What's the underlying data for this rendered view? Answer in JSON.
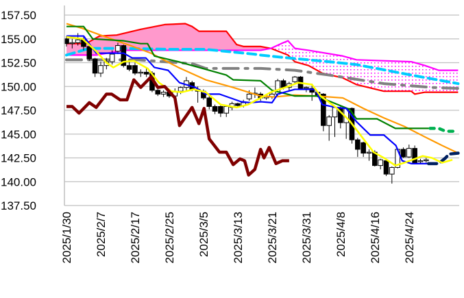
{
  "chart_data": {
    "type": "line",
    "title": "",
    "xlabel": "",
    "ylabel": "",
    "ylim": [
      137.5,
      157.5
    ],
    "xlim": [
      -0.4,
      68.8
    ],
    "grid": true,
    "y_ticks": [
      "157.50",
      "155.00",
      "152.50",
      "150.00",
      "147.50",
      "145.00",
      "142.50",
      "140.00",
      "137.50"
    ],
    "y_tick_values": [
      157.5,
      155,
      152.5,
      150,
      147.5,
      145,
      142.5,
      140,
      137.5
    ],
    "x_tick_labels": [
      "2025/1/30",
      "2025/2/7",
      "2025/2/17",
      "2025/2/25",
      "2025/3/5",
      "2025/3/13",
      "2025/3/21",
      "2025/3/31",
      "2025/4/8",
      "2025/4/16",
      "2025/4/24"
    ],
    "x_tick_index": [
      0,
      6,
      12,
      18,
      24,
      30,
      36,
      42,
      48,
      54,
      60
    ],
    "candles_ohlc": [
      [
        155.0,
        155.3,
        154.2,
        154.5
      ],
      [
        154.5,
        155.0,
        154.0,
        154.6
      ],
      [
        154.6,
        155.6,
        154.3,
        154.9
      ],
      [
        154.9,
        155.2,
        153.8,
        154.2
      ],
      [
        154.2,
        154.5,
        152.7,
        152.9
      ],
      [
        152.9,
        153.0,
        151.0,
        151.4
      ],
      [
        151.4,
        152.6,
        151.0,
        152.2
      ],
      [
        152.2,
        153.0,
        151.8,
        152.6
      ],
      [
        152.6,
        153.8,
        152.3,
        153.4
      ],
      [
        153.7,
        154.6,
        153.4,
        154.3
      ],
      [
        154.3,
        154.4,
        152.0,
        152.2
      ],
      [
        152.2,
        152.6,
        151.6,
        151.8
      ],
      [
        152.2,
        152.5,
        151.2,
        151.4
      ],
      [
        151.4,
        151.8,
        151.0,
        151.5
      ],
      [
        151.5,
        152.0,
        151.0,
        151.3
      ],
      [
        151.4,
        151.6,
        149.4,
        149.6
      ],
      [
        149.6,
        149.9,
        149.0,
        149.2
      ],
      [
        149.2,
        149.6,
        148.9,
        149.4
      ],
      [
        149.4,
        149.6,
        148.8,
        149.0
      ],
      [
        149.0,
        149.8,
        148.7,
        149.5
      ],
      [
        149.5,
        150.0,
        149.2,
        149.9
      ],
      [
        149.9,
        151.0,
        149.5,
        150.6
      ],
      [
        150.4,
        150.6,
        149.5,
        149.7
      ],
      [
        149.7,
        150.0,
        148.3,
        149.5
      ],
      [
        149.5,
        149.7,
        148.6,
        148.8
      ],
      [
        148.8,
        149.0,
        147.6,
        147.9
      ],
      [
        147.9,
        148.1,
        147.1,
        147.4
      ],
      [
        147.9,
        148.0,
        146.8,
        147.2
      ],
      [
        147.2,
        148.0,
        146.8,
        147.9
      ],
      [
        147.8,
        148.4,
        147.5,
        148.2
      ],
      [
        148.2,
        148.3,
        147.8,
        148.0
      ],
      [
        148.0,
        148.6,
        147.8,
        148.3
      ],
      [
        148.7,
        149.6,
        148.5,
        149.2
      ],
      [
        149.2,
        149.9,
        148.8,
        149.3
      ],
      [
        149.2,
        149.4,
        148.5,
        148.8
      ],
      [
        148.8,
        149.1,
        148.6,
        149.0
      ],
      [
        148.9,
        149.4,
        148.7,
        149.2
      ],
      [
        149.2,
        150.8,
        149.0,
        150.6
      ],
      [
        150.6,
        150.8,
        149.7,
        149.9
      ],
      [
        149.9,
        150.5,
        149.6,
        150.3
      ],
      [
        150.5,
        151.1,
        150.2,
        151.0
      ],
      [
        151.0,
        151.1,
        149.7,
        149.8
      ],
      [
        149.8,
        150.0,
        149.4,
        149.9
      ],
      [
        149.8,
        150.3,
        148.5,
        149.4
      ],
      [
        149.4,
        149.5,
        148.9,
        149.0
      ],
      [
        149.2,
        149.3,
        145.3,
        145.9
      ],
      [
        145.9,
        147.0,
        144.3,
        146.8
      ],
      [
        146.8,
        147.8,
        144.7,
        147.8
      ],
      [
        147.7,
        147.9,
        145.6,
        146.2
      ],
      [
        146.2,
        147.7,
        144.5,
        147.7
      ],
      [
        147.7,
        147.8,
        144.0,
        144.4
      ],
      [
        144.4,
        144.6,
        142.6,
        143.4
      ],
      [
        144.1,
        144.2,
        142.6,
        143.0
      ],
      [
        143.0,
        143.4,
        142.2,
        143.1
      ],
      [
        143.1,
        143.3,
        141.6,
        141.7
      ],
      [
        141.7,
        142.4,
        141.3,
        142.3
      ],
      [
        142.2,
        142.3,
        140.6,
        140.8
      ],
      [
        140.8,
        141.6,
        139.8,
        141.5
      ],
      [
        141.5,
        143.5,
        141.4,
        143.4
      ],
      [
        143.4,
        143.6,
        142.5,
        142.6
      ],
      [
        142.6,
        143.9,
        142.5,
        143.5
      ],
      [
        143.5,
        143.8,
        141.9,
        142.0
      ],
      [
        142.1,
        142.4,
        141.9,
        142.2
      ],
      [
        142.2,
        142.5,
        142.0,
        142.3
      ]
    ],
    "series": [
      {
        "name": "senkou-span-a",
        "color": "#ff0000",
        "style": "solid",
        "width": 2.2,
        "points": [
          [
            0,
            154.5
          ],
          [
            3.4,
            154.5
          ],
          [
            5.8,
            155.3
          ],
          [
            8.8,
            155.4
          ],
          [
            13,
            156.0
          ],
          [
            17.2,
            156.5
          ],
          [
            20.8,
            156.6
          ],
          [
            22,
            156.3
          ],
          [
            23.2,
            155.8
          ],
          [
            28,
            155.8
          ],
          [
            29.8,
            154.4
          ],
          [
            31,
            154.2
          ],
          [
            34,
            154.2
          ],
          [
            35.8,
            154.0
          ],
          [
            38.8,
            153.3
          ],
          [
            40,
            152.6
          ],
          [
            42.4,
            152.2
          ],
          [
            44.8,
            151.4
          ],
          [
            48.4,
            150.9
          ],
          [
            50.8,
            150.2
          ],
          [
            55.6,
            149.5
          ],
          [
            60.4,
            149.5
          ],
          [
            61,
            149.2
          ],
          [
            62.8,
            149.4
          ],
          [
            68.6,
            149.4
          ]
        ]
      },
      {
        "name": "senkou-span-b",
        "color": "#ff00ff",
        "style": "solid",
        "width": 2.2,
        "points": [
          [
            0,
            153.3
          ],
          [
            5.2,
            153.3
          ],
          [
            10,
            153.8
          ],
          [
            34,
            153.8
          ],
          [
            35.8,
            154.0
          ],
          [
            37.6,
            154.5
          ],
          [
            38.8,
            154.8
          ],
          [
            40,
            154.0
          ],
          [
            42.4,
            153.8
          ],
          [
            48.4,
            153.2
          ],
          [
            50.8,
            152.8
          ],
          [
            60.4,
            152.6
          ],
          [
            62.8,
            152.2
          ],
          [
            65.2,
            151.7
          ],
          [
            68.6,
            151.7
          ]
        ]
      },
      {
        "name": "ma-200",
        "color": "#00ccff",
        "style": "dash",
        "width": 4,
        "points": [
          [
            0,
            153.3
          ],
          [
            4,
            154.0
          ],
          [
            10,
            154.0
          ],
          [
            18.4,
            153.9
          ],
          [
            24.4,
            153.9
          ],
          [
            32.8,
            153.4
          ],
          [
            34,
            153.3
          ],
          [
            38.8,
            153.0
          ],
          [
            46,
            152.6
          ],
          [
            50.8,
            152.3
          ],
          [
            60.4,
            151.2
          ],
          [
            68.6,
            150.3
          ]
        ]
      },
      {
        "name": "ma-75",
        "color": "#808080",
        "style": "dashdot",
        "width": 4,
        "points": [
          [
            0,
            152.8
          ],
          [
            12.4,
            152.8
          ],
          [
            22,
            152.4
          ],
          [
            24.4,
            151.9
          ],
          [
            34,
            151.9
          ],
          [
            40,
            151.7
          ],
          [
            46,
            151.2
          ],
          [
            55.6,
            150.3
          ],
          [
            64,
            149.9
          ],
          [
            68.6,
            149.8
          ]
        ]
      },
      {
        "name": "ma-25",
        "color": "#ff9900",
        "style": "solid",
        "width": 2.2,
        "points": [
          [
            0,
            156.6
          ],
          [
            2.8,
            156.1
          ],
          [
            6.4,
            155.3
          ],
          [
            11.2,
            154.3
          ],
          [
            14.8,
            153.5
          ],
          [
            19.6,
            152.0
          ],
          [
            24.4,
            150.7
          ],
          [
            29.2,
            149.9
          ],
          [
            34,
            149.0
          ],
          [
            36.4,
            148.9
          ],
          [
            40,
            149.1
          ],
          [
            43.6,
            149.0
          ],
          [
            48.4,
            148.8
          ],
          [
            52,
            147.7
          ],
          [
            55.6,
            146.7
          ],
          [
            59.2,
            145.8
          ],
          [
            62.8,
            144.7
          ],
          [
            65.8,
            143.8
          ],
          [
            68.6,
            143.0
          ]
        ]
      },
      {
        "name": "kijun-sen",
        "color": "#008000",
        "style": "solid",
        "width": 2.2,
        "points": [
          [
            0,
            156.3
          ],
          [
            3,
            156.3
          ],
          [
            4.6,
            155.0
          ],
          [
            10,
            154.8
          ],
          [
            13,
            154.5
          ],
          [
            14.2,
            154.5
          ],
          [
            15.4,
            153.2
          ],
          [
            19.6,
            152.6
          ],
          [
            23.2,
            152.0
          ],
          [
            28,
            151.2
          ],
          [
            29.2,
            150.7
          ],
          [
            34,
            150.6
          ],
          [
            36,
            149.6
          ],
          [
            40,
            149.0
          ],
          [
            43.8,
            149.0
          ],
          [
            49.6,
            147.6
          ],
          [
            50.8,
            146.6
          ],
          [
            54.4,
            146.6
          ],
          [
            57.6,
            145.6
          ],
          [
            63.7,
            145.6
          ]
        ]
      },
      {
        "name": "kijun-sen-forecast",
        "color": "#00b050",
        "style": "dot",
        "width": 4.5,
        "points": [
          [
            63.7,
            145.6
          ],
          [
            65.2,
            145.6
          ],
          [
            66.4,
            145.3
          ],
          [
            68.6,
            145.3
          ]
        ]
      },
      {
        "name": "tenkan-sen",
        "color": "#0000ff",
        "style": "solid",
        "width": 2.2,
        "points": [
          [
            0,
            155.3
          ],
          [
            3,
            155.3
          ],
          [
            5.2,
            153.5
          ],
          [
            10,
            153.5
          ],
          [
            11.5,
            153.0
          ],
          [
            13.9,
            153.0
          ],
          [
            15.4,
            152.0
          ],
          [
            17.8,
            151.7
          ],
          [
            19.8,
            150.4
          ],
          [
            22.6,
            149.9
          ],
          [
            24.4,
            149.2
          ],
          [
            26.8,
            149.2
          ],
          [
            30.6,
            148.4
          ],
          [
            32.2,
            148.3
          ],
          [
            34,
            148.4
          ],
          [
            36,
            148.3
          ],
          [
            37,
            149.2
          ],
          [
            40,
            149.7
          ],
          [
            43.6,
            149.7
          ],
          [
            44.8,
            148.1
          ],
          [
            47.2,
            147.8
          ],
          [
            49,
            147.7
          ],
          [
            50.8,
            146.3
          ],
          [
            53.2,
            144.9
          ],
          [
            55.6,
            144.9
          ],
          [
            57.7,
            143.8
          ],
          [
            58.8,
            142.2
          ],
          [
            60.4,
            141.9
          ],
          [
            63.4,
            141.9
          ]
        ]
      },
      {
        "name": "tenkan-sen-forecast",
        "color": "#002060",
        "style": "dash",
        "width": 4.5,
        "points": [
          [
            63.4,
            141.9
          ],
          [
            65.2,
            141.9
          ],
          [
            66.4,
            142.5
          ],
          [
            67,
            142.9
          ],
          [
            68.6,
            143.0
          ]
        ]
      },
      {
        "name": "ma-5",
        "color": "#ffff00",
        "style": "solid",
        "width": 2.6,
        "points": [
          [
            0,
            155.2
          ],
          [
            2.8,
            155.0
          ],
          [
            5.2,
            153.7
          ],
          [
            7,
            152.5
          ],
          [
            8.2,
            152.0
          ],
          [
            10,
            152.6
          ],
          [
            11.8,
            152.7
          ],
          [
            14.2,
            151.9
          ],
          [
            16.2,
            150.4
          ],
          [
            18.4,
            149.5
          ],
          [
            20.2,
            149.4
          ],
          [
            22.3,
            149.7
          ],
          [
            24.4,
            149.4
          ],
          [
            27,
            148.1
          ],
          [
            29.8,
            147.8
          ],
          [
            31.8,
            148.1
          ],
          [
            34,
            148.8
          ],
          [
            35.8,
            149.4
          ],
          [
            38.8,
            150.0
          ],
          [
            40.6,
            150.4
          ],
          [
            43,
            150.2
          ],
          [
            44.5,
            149.0
          ],
          [
            47.2,
            147.8
          ],
          [
            49.6,
            146.4
          ],
          [
            52,
            144.5
          ],
          [
            53.8,
            143.1
          ],
          [
            55.6,
            142.5
          ],
          [
            57.6,
            141.7
          ],
          [
            59.2,
            142.0
          ],
          [
            62.4,
            142.7
          ],
          [
            64,
            142.5
          ],
          [
            65.8,
            142.0
          ],
          [
            67.6,
            142.3
          ]
        ]
      },
      {
        "name": "chikou-span",
        "color": "#7f0000",
        "style": "solid",
        "width": 4.5,
        "points": [
          [
            0,
            147.9
          ],
          [
            1,
            147.9
          ],
          [
            2.2,
            147.2
          ],
          [
            4,
            148.3
          ],
          [
            5.2,
            147.8
          ],
          [
            7,
            149.2
          ],
          [
            7.9,
            149.2
          ],
          [
            9.4,
            148.6
          ],
          [
            10.6,
            148.6
          ],
          [
            11.8,
            150.7
          ],
          [
            13,
            149.9
          ],
          [
            14.8,
            151.0
          ],
          [
            16,
            149.9
          ],
          [
            17.2,
            150.0
          ],
          [
            19,
            148.8
          ],
          [
            19.8,
            145.9
          ],
          [
            22,
            147.8
          ],
          [
            23.2,
            146.1
          ],
          [
            24.1,
            147.7
          ],
          [
            25,
            144.5
          ],
          [
            26.8,
            143.1
          ],
          [
            28,
            143.1
          ],
          [
            29.2,
            141.8
          ],
          [
            30.4,
            142.4
          ],
          [
            31.2,
            142.2
          ],
          [
            31.9,
            140.7
          ],
          [
            33,
            141.3
          ],
          [
            34,
            143.4
          ],
          [
            34.6,
            142.5
          ],
          [
            35.5,
            143.6
          ],
          [
            36.7,
            141.9
          ],
          [
            37.8,
            142.2
          ],
          [
            39,
            142.2
          ]
        ]
      }
    ],
    "cloud": {
      "bullish_fill": "#ff99cc",
      "bearish_fill": "#ff00ff"
    }
  }
}
